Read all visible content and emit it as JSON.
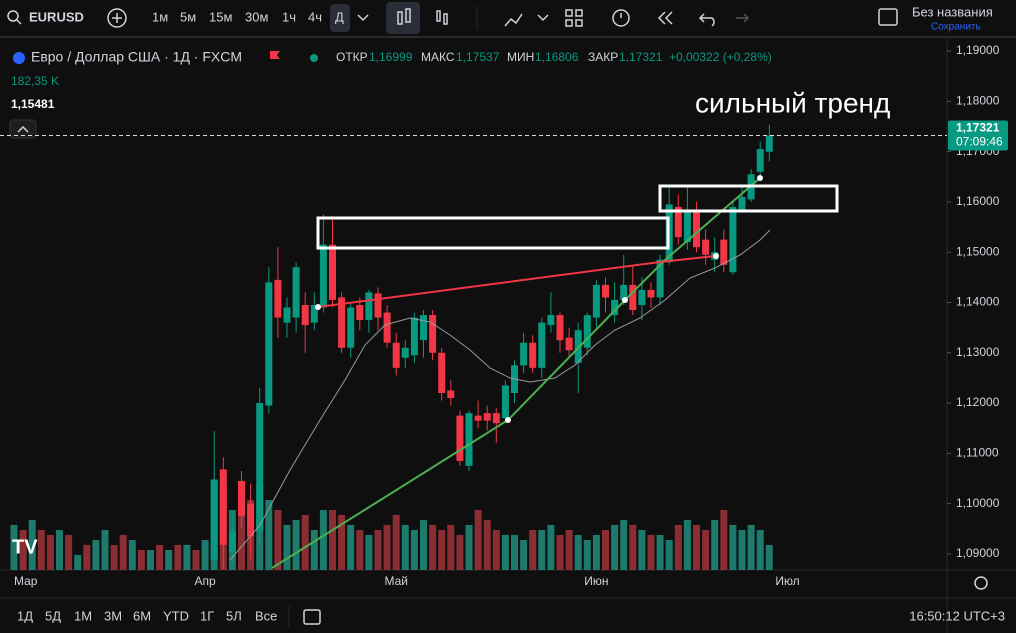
{
  "toolbar": {
    "symbol": "EURUSD",
    "intervals": [
      "1м",
      "5м",
      "15м",
      "30м",
      "1ч",
      "4ч",
      "Д"
    ],
    "layout_name": "Без названия",
    "save": "Сохранить"
  },
  "legend": {
    "title": "Евро / Доллар США · 1Д · FXCM",
    "open_label": "ОТКР",
    "open": "1,16999",
    "high_label": "МАКС",
    "high": "1,17537",
    "low_label": "МИН",
    "low": "1,16806",
    "close_label": "ЗАКР",
    "close": "1,17321",
    "change": "+0,00322 (+0,28%)",
    "volume": "182,35 K",
    "indicator": "1,15481"
  },
  "price_label": {
    "price": "1,17321",
    "countdown": "07:09:46"
  },
  "bottom_bar": {
    "ranges": [
      "1Д",
      "5Д",
      "1М",
      "3М",
      "6М",
      "YTD",
      "1Г",
      "5Л",
      "Все"
    ],
    "clock": "16:50:12 UTC+3"
  },
  "chart_data": {
    "type": "candlestick",
    "annotation": "сильный тренд",
    "up_color": "#089981",
    "down_color": "#f23645",
    "ylim": [
      1.0868,
      1.1922
    ],
    "yticks": [
      {
        "value": 1.09,
        "label": "1,09000"
      },
      {
        "value": 1.1,
        "label": "1,10000"
      },
      {
        "value": 1.11,
        "label": "1,11000"
      },
      {
        "value": 1.12,
        "label": "1,12000"
      },
      {
        "value": 1.13,
        "label": "1,13000"
      },
      {
        "value": 1.14,
        "label": "1,14000"
      },
      {
        "value": 1.15,
        "label": "1,15000"
      },
      {
        "value": 1.16,
        "label": "1,16000"
      },
      {
        "value": 1.17,
        "label": "1,17000"
      },
      {
        "value": 1.18,
        "label": "1,18000"
      },
      {
        "value": 1.19,
        "label": "1,19000"
      }
    ],
    "grid": false,
    "categories": [
      "Мар",
      null,
      null,
      null,
      null,
      null,
      null,
      null,
      null,
      null,
      null,
      null,
      null,
      null,
      null,
      null,
      null,
      null,
      null,
      null,
      null,
      "Апр",
      null,
      null,
      null,
      null,
      null,
      null,
      null,
      null,
      null,
      null,
      null,
      null,
      null,
      null,
      null,
      null,
      null,
      null,
      null,
      null,
      "Май",
      null,
      null,
      null,
      null,
      null,
      null,
      null,
      null,
      null,
      null,
      null,
      null,
      null,
      null,
      null,
      null,
      null,
      null,
      null,
      null,
      null,
      "Июн",
      null,
      null,
      null,
      null,
      null,
      null,
      null,
      null,
      null,
      null,
      null,
      null,
      null,
      null,
      null,
      null,
      null,
      null,
      null,
      null,
      "Июл"
    ],
    "open": [
      null,
      null,
      null,
      null,
      null,
      null,
      null,
      null,
      null,
      null,
      null,
      null,
      null,
      null,
      null,
      null,
      null,
      null,
      null,
      null,
      null,
      null,
      1.0888,
      1.1068,
      1.0905,
      1.1045,
      1.1,
      1.0945,
      1.1195,
      1.1445,
      1.136,
      1.137,
      1.1395,
      1.136,
      1.139,
      1.1515,
      1.141,
      1.131,
      1.1395,
      1.1365,
      1.1418,
      1.138,
      1.132,
      1.129,
      1.1295,
      1.1325,
      1.1375,
      1.13,
      1.1225,
      1.1175,
      1.1075,
      1.1175,
      1.118,
      1.118,
      1.117,
      1.122,
      1.1275,
      1.132,
      1.127,
      1.1355,
      1.1375,
      1.133,
      1.128,
      1.131,
      1.137,
      1.1435,
      1.1375,
      1.1405,
      1.1435,
      1.1395,
      1.1425,
      1.141,
      1.148,
      1.159,
      1.152,
      1.1585,
      1.1525,
      1.1485,
      1.1525,
      1.146,
      1.1585,
      1.1605,
      1.166,
      1.16999,
      null,
      null
    ],
    "high": [
      null,
      null,
      null,
      null,
      null,
      null,
      null,
      null,
      null,
      null,
      null,
      null,
      null,
      null,
      null,
      null,
      null,
      null,
      null,
      null,
      null,
      null,
      1.1144,
      1.1092,
      1.0985,
      1.1065,
      1.104,
      1.123,
      1.147,
      1.151,
      1.141,
      1.148,
      1.142,
      1.142,
      1.1575,
      1.1572,
      1.142,
      1.14,
      1.141,
      1.1425,
      1.143,
      1.1395,
      1.134,
      1.1325,
      1.138,
      1.1385,
      1.1385,
      1.131,
      1.1245,
      1.1185,
      1.1185,
      1.1205,
      1.1195,
      1.119,
      1.1245,
      1.1285,
      1.134,
      1.1335,
      1.137,
      1.142,
      1.138,
      1.135,
      1.136,
      1.138,
      1.1445,
      1.145,
      1.144,
      1.1495,
      1.1475,
      1.145,
      1.144,
      1.1495,
      1.163,
      1.1615,
      1.163,
      1.16,
      1.1545,
      1.153,
      1.1545,
      1.16,
      1.1635,
      1.1665,
      1.172,
      1.17537,
      null,
      null
    ],
    "low": [
      null,
      null,
      null,
      null,
      null,
      null,
      null,
      null,
      null,
      null,
      null,
      null,
      null,
      null,
      null,
      null,
      null,
      null,
      null,
      null,
      null,
      null,
      1.0868,
      1.087,
      1.088,
      1.095,
      1.089,
      1.092,
      1.118,
      1.133,
      1.133,
      1.134,
      1.13,
      1.1345,
      1.138,
      1.139,
      1.13,
      1.129,
      1.1345,
      1.134,
      1.1345,
      1.131,
      1.1255,
      1.127,
      1.128,
      1.129,
      1.1285,
      1.1205,
      1.1195,
      1.1075,
      1.1065,
      1.115,
      1.1145,
      1.112,
      1.116,
      1.12,
      1.126,
      1.126,
      1.125,
      1.134,
      1.13,
      1.129,
      1.122,
      1.1295,
      1.135,
      1.138,
      1.136,
      1.1395,
      1.1375,
      1.1365,
      1.139,
      1.1395,
      1.1475,
      1.1515,
      1.1505,
      1.15,
      1.1475,
      1.146,
      1.146,
      1.1455,
      1.158,
      1.16,
      1.165,
      1.16806,
      null,
      null
    ],
    "close": [
      null,
      null,
      null,
      null,
      null,
      null,
      null,
      null,
      null,
      null,
      null,
      null,
      null,
      null,
      null,
      null,
      null,
      null,
      null,
      null,
      null,
      null,
      1.1048,
      1.0918,
      1.0945,
      1.0975,
      1.0935,
      1.12,
      1.144,
      1.137,
      1.139,
      1.147,
      1.1355,
      1.1395,
      1.1515,
      1.1405,
      1.131,
      1.139,
      1.1365,
      1.142,
      1.137,
      1.132,
      1.127,
      1.131,
      1.137,
      1.1375,
      1.13,
      1.122,
      1.121,
      1.1085,
      1.118,
      1.1165,
      1.1165,
      1.116,
      1.1235,
      1.1275,
      1.132,
      1.127,
      1.136,
      1.1375,
      1.1325,
      1.1305,
      1.1345,
      1.1375,
      1.1435,
      1.141,
      1.1405,
      1.1435,
      1.1385,
      1.1425,
      1.141,
      1.1485,
      1.1595,
      1.153,
      1.158,
      1.151,
      1.1495,
      1.15,
      1.1475,
      1.159,
      1.161,
      1.1655,
      1.1705,
      1.17321,
      null,
      null
    ],
    "volume": [
      329,
      292,
      365,
      292,
      256,
      292,
      256,
      110,
      183,
      219,
      292,
      183,
      256,
      219,
      146,
      146,
      183,
      146,
      183,
      183,
      146,
      219,
      657,
      620,
      438,
      402,
      511,
      620,
      511,
      438,
      329,
      365,
      402,
      292,
      438,
      438,
      402,
      329,
      292,
      256,
      292,
      329,
      402,
      329,
      292,
      365,
      329,
      292,
      329,
      256,
      329,
      438,
      365,
      292,
      256,
      256,
      219,
      292,
      292,
      329,
      256,
      292,
      256,
      219,
      256,
      292,
      329,
      365,
      329,
      292,
      256,
      256,
      219,
      329,
      365,
      329,
      292,
      365,
      438,
      329,
      292,
      329,
      292,
      182.35,
      null,
      null
    ],
    "volume_colors": [
      "#1d7a6d",
      "#8b2e33",
      "#1d7a6d",
      "#8b2e33",
      "#8b2e33",
      "#1d7a6d",
      "#8b2e33",
      "#1d7a6d",
      "#8b2e33",
      "#1d7a6d",
      "#1d7a6d",
      "#8b2e33",
      "#8b2e33",
      "#1d7a6d",
      "#8b2e33",
      "#1d7a6d",
      "#8b2e33",
      "#1d7a6d",
      "#8b2e33",
      "#1d7a6d",
      "#8b2e33",
      "#1d7a6d",
      "#1d7a6d",
      "#8b2e33",
      "#1d7a6d",
      "#8b2e33",
      "#8b2e33",
      "#1d7a6d",
      "#1d7a6d",
      "#8b2e33",
      "#1d7a6d",
      "#1d7a6d",
      "#8b2e33",
      "#1d7a6d",
      "#1d7a6d",
      "#8b2e33",
      "#8b2e33",
      "#1d7a6d",
      "#8b2e33",
      "#1d7a6d",
      "#8b2e33",
      "#8b2e33",
      "#8b2e33",
      "#1d7a6d",
      "#1d7a6d",
      "#1d7a6d",
      "#8b2e33",
      "#8b2e33",
      "#8b2e33",
      "#8b2e33",
      "#1d7a6d",
      "#8b2e33",
      "#8b2e33",
      "#8b2e33",
      "#1d7a6d",
      "#1d7a6d",
      "#1d7a6d",
      "#8b2e33",
      "#1d7a6d",
      "#1d7a6d",
      "#8b2e33",
      "#8b2e33",
      "#1d7a6d",
      "#1d7a6d",
      "#1d7a6d",
      "#8b2e33",
      "#1d7a6d",
      "#1d7a6d",
      "#8b2e33",
      "#1d7a6d",
      "#8b2e33",
      "#1d7a6d",
      "#1d7a6d",
      "#8b2e33",
      "#1d7a6d",
      "#8b2e33",
      "#8b2e33",
      "#1d7a6d",
      "#8b2e33",
      "#1d7a6d",
      "#1d7a6d",
      "#1d7a6d",
      "#1d7a6d",
      "#1d7a6d",
      null,
      null
    ]
  }
}
